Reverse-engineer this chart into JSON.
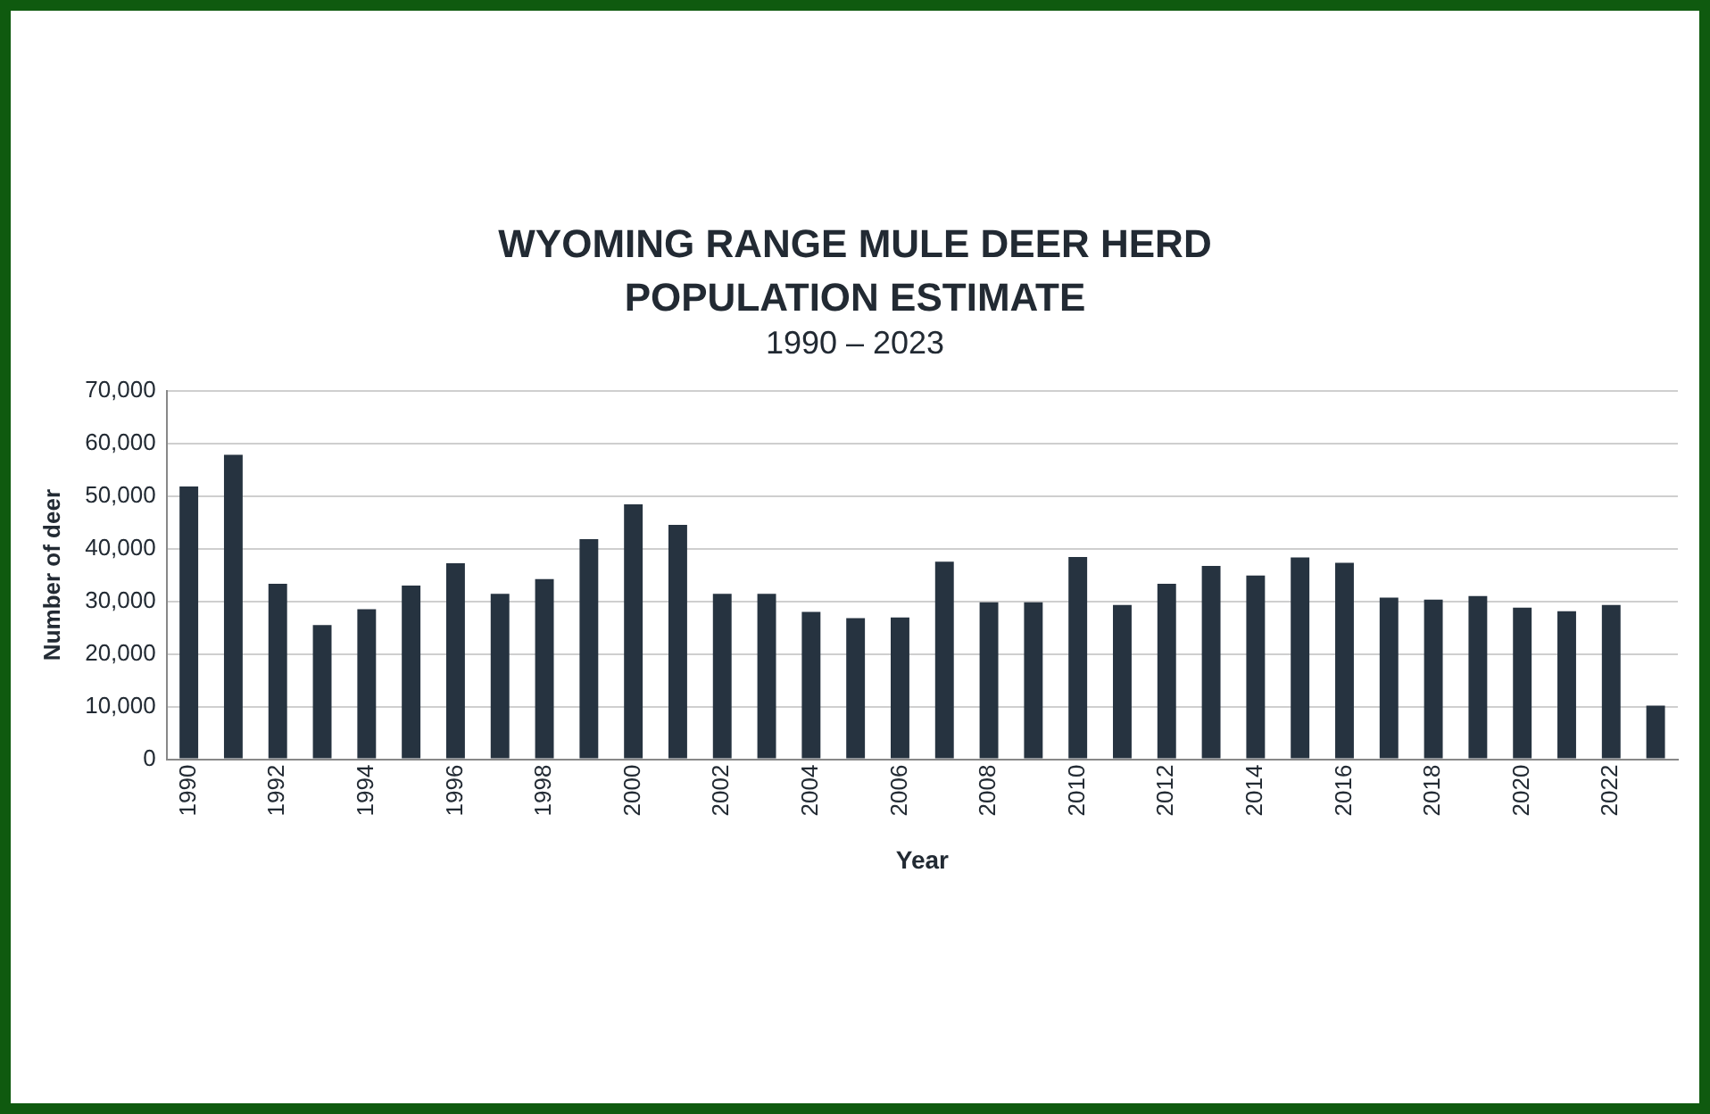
{
  "chart_data": {
    "type": "bar",
    "title": "WYOMING RANGE MULE DEER HERD POPULATION ESTIMATE",
    "subtitle": "1990 – 2023",
    "xlabel": "Year",
    "ylabel": "Number of deer",
    "categories": [
      "1990",
      null,
      "1992",
      null,
      "1994",
      null,
      "1996",
      null,
      "1998",
      null,
      "2000",
      null,
      "2002",
      null,
      "2004",
      null,
      "2006",
      null,
      "2008",
      null,
      "2010",
      null,
      "2012",
      null,
      "2014",
      null,
      "2016",
      null,
      "2018",
      null,
      "2020",
      null,
      "2022",
      null
    ],
    "values": [
      51800,
      57800,
      33300,
      25500,
      28500,
      33000,
      37200,
      31400,
      34200,
      41800,
      48400,
      44500,
      31400,
      31400,
      28000,
      26800,
      26900,
      37500,
      29800,
      29800,
      38400,
      29300,
      33300,
      36700,
      34900,
      38300,
      37300,
      30700,
      30300,
      31000,
      28800,
      28100,
      29300,
      10200
    ],
    "color": "#263340",
    "ylim": [
      0,
      70000
    ],
    "yticks": [
      {
        "value": 0,
        "label": "0"
      },
      {
        "value": 10000,
        "label": "10,000"
      },
      {
        "value": 20000,
        "label": "20,000"
      },
      {
        "value": 30000,
        "label": "30,000"
      },
      {
        "value": 40000,
        "label": "40,000"
      },
      {
        "value": 50000,
        "label": "50,000"
      },
      {
        "value": 60000,
        "label": "60,000"
      },
      {
        "value": 70000,
        "label": "70,000"
      }
    ],
    "grid": "y",
    "legend": false
  }
}
